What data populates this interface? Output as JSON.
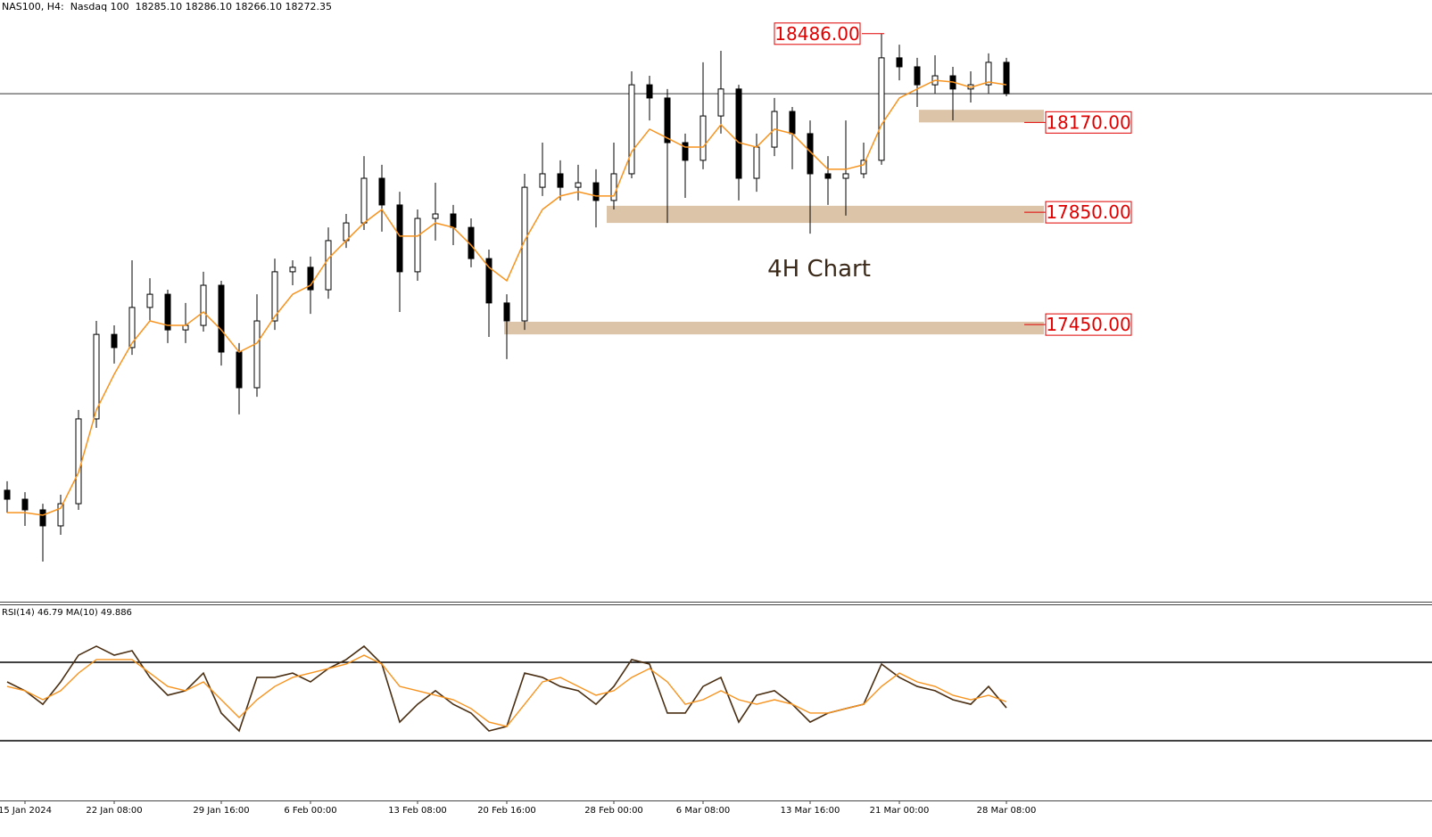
{
  "chart_data": [
    {
      "type": "candlestick",
      "title": "NAS100, H4:  Nasdaq 100  18285.10 18286.10 18266.10 18272.35",
      "annotation": "4H Chart",
      "categories": [
        null,
        "15 Jan 2024",
        null,
        null,
        null,
        null,
        "22 Jan 08:00",
        null,
        null,
        null,
        null,
        null,
        "29 Jan 16:00",
        null,
        null,
        null,
        null,
        "6 Feb 00:00",
        null,
        null,
        null,
        null,
        null,
        "13 Feb 08:00",
        null,
        null,
        null,
        null,
        "20 Feb 16:00",
        null,
        null,
        null,
        null,
        null,
        "28 Feb 00:00",
        null,
        null,
        null,
        null,
        "6 Mar 08:00",
        null,
        null,
        null,
        null,
        null,
        "13 Mar 16:00",
        null,
        null,
        null,
        null,
        "21 Mar 00:00",
        null,
        null,
        null,
        null,
        null,
        "28 Mar 08:00"
      ],
      "open": [
        16860,
        16828,
        16790,
        16733,
        16812,
        17114,
        17415,
        17368,
        17511,
        17558,
        17431,
        17447,
        17590,
        17352,
        17225,
        17463,
        17638,
        17654,
        17574,
        17749,
        17812,
        17971,
        17876,
        17638,
        17828,
        17844,
        17796,
        17685,
        17527,
        17463,
        17939,
        17987,
        17939,
        17955,
        17892,
        17987,
        18304,
        18257,
        18098,
        18035,
        18193,
        18289,
        17971,
        18082,
        18209,
        18130,
        17987,
        17971,
        17987,
        18035,
        18400,
        18368,
        18304,
        18336,
        18289,
        18304,
        18384
      ],
      "high": [
        16892,
        16853,
        16812,
        16844,
        17146,
        17463,
        17447,
        17679,
        17615,
        17574,
        17527,
        17638,
        17606,
        17384,
        17558,
        17685,
        17679,
        17692,
        17796,
        17844,
        18050,
        18019,
        17923,
        17860,
        17955,
        17876,
        17828,
        17717,
        17558,
        17987,
        18098,
        18035,
        18019,
        18003,
        18098,
        18352,
        18336,
        18289,
        18130,
        18384,
        18425,
        18304,
        18130,
        18257,
        18225,
        18177,
        18050,
        18177,
        18098,
        18486,
        18447,
        18400,
        18409,
        18368,
        18352,
        18416,
        18400
      ],
      "low": [
        16780,
        16733,
        16606,
        16701,
        16790,
        17082,
        17311,
        17342,
        17463,
        17384,
        17384,
        17425,
        17304,
        17130,
        17193,
        17431,
        17590,
        17488,
        17542,
        17723,
        17787,
        17781,
        17495,
        17606,
        17749,
        17733,
        17654,
        17406,
        17327,
        17431,
        17908,
        17892,
        17892,
        17796,
        17860,
        17971,
        18177,
        17812,
        17901,
        18003,
        18130,
        17892,
        17923,
        18050,
        18003,
        17774,
        17876,
        17838,
        17971,
        18019,
        18320,
        18225,
        18273,
        18177,
        18241,
        18273,
        18263
      ],
      "close": [
        16828,
        16790,
        16733,
        16812,
        17114,
        17415,
        17368,
        17511,
        17558,
        17431,
        17447,
        17590,
        17352,
        17225,
        17463,
        17638,
        17654,
        17574,
        17749,
        17812,
        17971,
        17876,
        17638,
        17828,
        17844,
        17796,
        17685,
        17527,
        17463,
        17939,
        17987,
        17939,
        17955,
        17892,
        17987,
        18304,
        18257,
        18098,
        18035,
        18193,
        18289,
        17971,
        18082,
        18209,
        18130,
        17987,
        17971,
        17987,
        18035,
        18400,
        18368,
        18304,
        18336,
        18289,
        18304,
        18384,
        18272.35
      ],
      "color": "#000000",
      "moving_average": {
        "color": "#f7931e",
        "values": [
          16780,
          16780,
          16771,
          16796,
          16923,
          17146,
          17273,
          17384,
          17463,
          17447,
          17447,
          17495,
          17431,
          17352,
          17384,
          17479,
          17558,
          17590,
          17685,
          17749,
          17812,
          17860,
          17765,
          17765,
          17812,
          17796,
          17733,
          17654,
          17606,
          17749,
          17860,
          17908,
          17923,
          17908,
          17908,
          18066,
          18146,
          18114,
          18082,
          18082,
          18162,
          18098,
          18082,
          18146,
          18130,
          18066,
          18003,
          18003,
          18019,
          18162,
          18257,
          18289,
          18320,
          18314,
          18295,
          18314,
          18304
        ]
      },
      "ylim": [
        16463,
        18606
      ],
      "current_price": 18272.35,
      "levels": [
        {
          "value": 18486,
          "label": "18486.00"
        },
        {
          "value": 18170,
          "label": "18170.00",
          "zone": [
            18170,
            18215
          ]
        },
        {
          "value": 17850,
          "label": "17850.00",
          "zone": [
            17812,
            17873
          ]
        },
        {
          "value": 17450,
          "label": "17450.00",
          "zone": [
            17415,
            17460
          ]
        }
      ],
      "zone_color": "#dcc4a8",
      "label_color": "#e00000"
    },
    {
      "type": "line",
      "title": "RSI(14) 46.79 MA(10) 49.886",
      "series": [
        {
          "color": "#4a2e12",
          "values": [
            60,
            55.5,
            48.6,
            60,
            73.6,
            78.2,
            73.6,
            75.9,
            62.3,
            53.2,
            55.5,
            64.5,
            44.1,
            35,
            62.3,
            62.3,
            64.5,
            60,
            66.8,
            71.4,
            78.2,
            69.1,
            39.5,
            48.6,
            55.5,
            48.6,
            44.1,
            35,
            37.3,
            64.5,
            62.3,
            57.7,
            55.5,
            48.6,
            57.7,
            71.4,
            69.1,
            44.1,
            44.1,
            57.7,
            62.3,
            39.5,
            53.2,
            55.5,
            48.6,
            39.5,
            44.1,
            46.4,
            48.6,
            69.1,
            62.3,
            57.7,
            55.5,
            50.9,
            48.6,
            57.7,
            46.79
          ]
        },
        {
          "color": "#f7931e",
          "values": [
            57.7,
            55.5,
            50.9,
            55.5,
            64.5,
            71.4,
            71.4,
            71.4,
            64.5,
            57.7,
            55.5,
            60,
            50.9,
            41.8,
            50.9,
            57.7,
            62.3,
            64.5,
            66.8,
            69.1,
            73.6,
            69.1,
            57.7,
            55.5,
            53.2,
            50.9,
            46.4,
            39.5,
            37.3,
            48.6,
            60,
            62.3,
            57.7,
            53.2,
            55.5,
            62.3,
            66.8,
            60,
            48.6,
            50.9,
            55.5,
            50.9,
            48.6,
            50.9,
            48.6,
            44.1,
            44.1,
            46.4,
            48.6,
            57.7,
            64.5,
            60,
            57.7,
            53.2,
            50.9,
            53.2,
            49.886
          ]
        }
      ],
      "ylim": [
        0,
        100
      ],
      "levels": [
        70,
        30
      ]
    }
  ]
}
